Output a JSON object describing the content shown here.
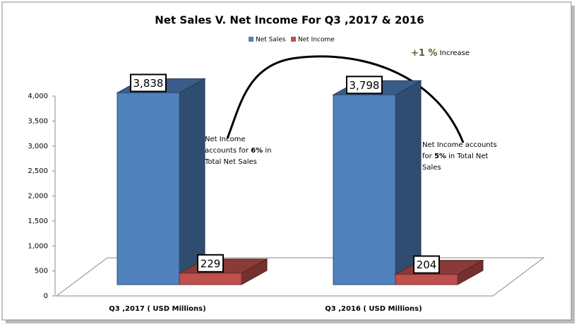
{
  "chart_data": {
    "type": "bar3d",
    "title": "Net Sales V. Net Income For Q3 ,2017 & 2016",
    "categories": [
      "Q3 ,2017 ( USD Millions)",
      "Q3 ,2016 ( USD Millions)"
    ],
    "series": [
      {
        "name": "Net Sales",
        "color": "#4f81bd",
        "values": [
          3838,
          3798
        ],
        "value_labels": [
          "3,838",
          "3,798"
        ]
      },
      {
        "name": "Net Income",
        "color": "#c0504d",
        "values": [
          229,
          204
        ]
      }
    ],
    "ylim": [
      0,
      4000
    ],
    "yticks": [
      0,
      500,
      {
        "value": 1000,
        "label": "1,000"
      },
      {
        "value": 1500,
        "label": "1,500"
      },
      {
        "value": 2000,
        "label": "2,000"
      },
      {
        "value": 2500,
        "label": "2,500"
      },
      {
        "value": 3000,
        "label": "3,000"
      },
      {
        "value": 3500,
        "label": "3,500"
      },
      {
        "value": 4000,
        "label": "4,000"
      }
    ],
    "legend": "top",
    "annotations": [
      {
        "lines": [
          [
            {
              "text": "Net Income"
            }
          ],
          [
            {
              "text": "accounts for "
            },
            {
              "text": "6%",
              "bold": true
            },
            {
              "text": " in"
            }
          ],
          [
            {
              "text": "Total Net Sales"
            }
          ]
        ]
      },
      {
        "lines": [
          [
            {
              "text": "Net Income accounts"
            }
          ],
          [
            {
              "text": "for "
            },
            {
              "text": "5%",
              "bold": true
            },
            {
              "text": " in Total Net"
            }
          ],
          [
            {
              "text": "Sales"
            }
          ]
        ]
      },
      {
        "lines": [
          [
            {
              "text": "+1 %",
              "bold": true,
              "color": "#4f6228"
            },
            {
              "text": " Increase"
            }
          ]
        ]
      }
    ]
  }
}
